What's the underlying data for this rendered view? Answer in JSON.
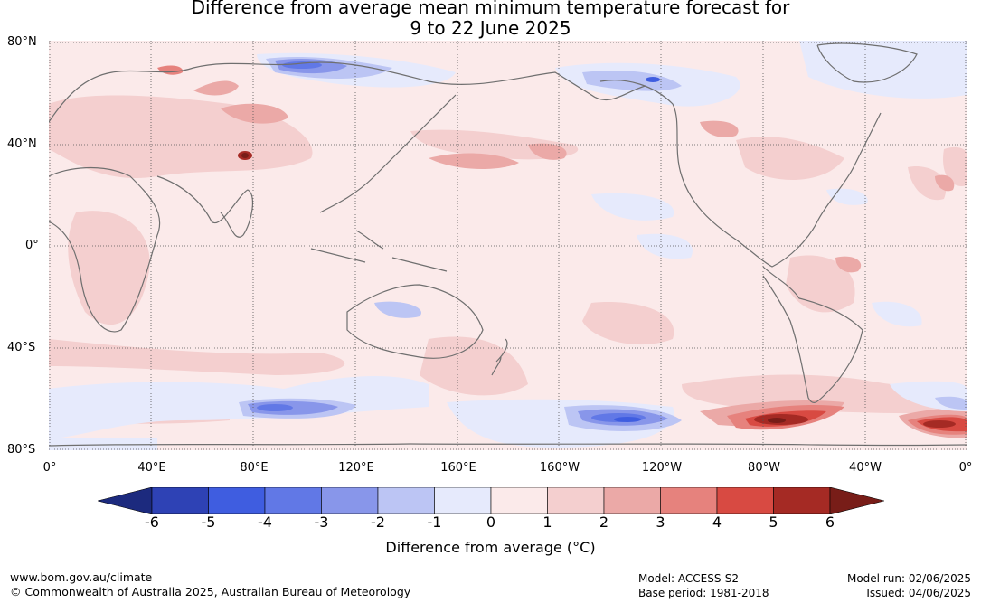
{
  "title": {
    "line1": "Difference from average mean minimum temperature forecast for",
    "line2": "9 to 22 June 2025"
  },
  "map": {
    "lat_labels": [
      "80°N",
      "40°N",
      "0°",
      "40°S",
      "80°S"
    ],
    "lon_labels": [
      "0°",
      "40°E",
      "80°E",
      "120°E",
      "160°E",
      "160°W",
      "120°W",
      "80°W",
      "40°W",
      "0°"
    ],
    "land_color": "#6f6f6f",
    "grid_color": "#555555"
  },
  "colorbar": {
    "ticks": [
      "-6",
      "-5",
      "-4",
      "-3",
      "-2",
      "-1",
      "0",
      "1",
      "2",
      "3",
      "4",
      "5",
      "6"
    ],
    "colors": [
      "#1c2a7e",
      "#2e42b5",
      "#3f5de0",
      "#6178e6",
      "#8896ea",
      "#bcc5f4",
      "#e6eafc",
      "#fbeaea",
      "#f4cfcf",
      "#eba9a7",
      "#e6827d",
      "#d84a42",
      "#a52a24",
      "#781d18"
    ],
    "label": "Difference from average (°C)"
  },
  "footer": {
    "website": "www.bom.gov.au/climate",
    "copyright": "© Commonwealth of Australia 2025, Australian Bureau of Meteorology",
    "model": "Model: ACCESS-S2",
    "base_period": "Base period: 1981-2018",
    "model_run": "Model run: 02/06/2025",
    "issued": "Issued: 04/06/2025"
  }
}
